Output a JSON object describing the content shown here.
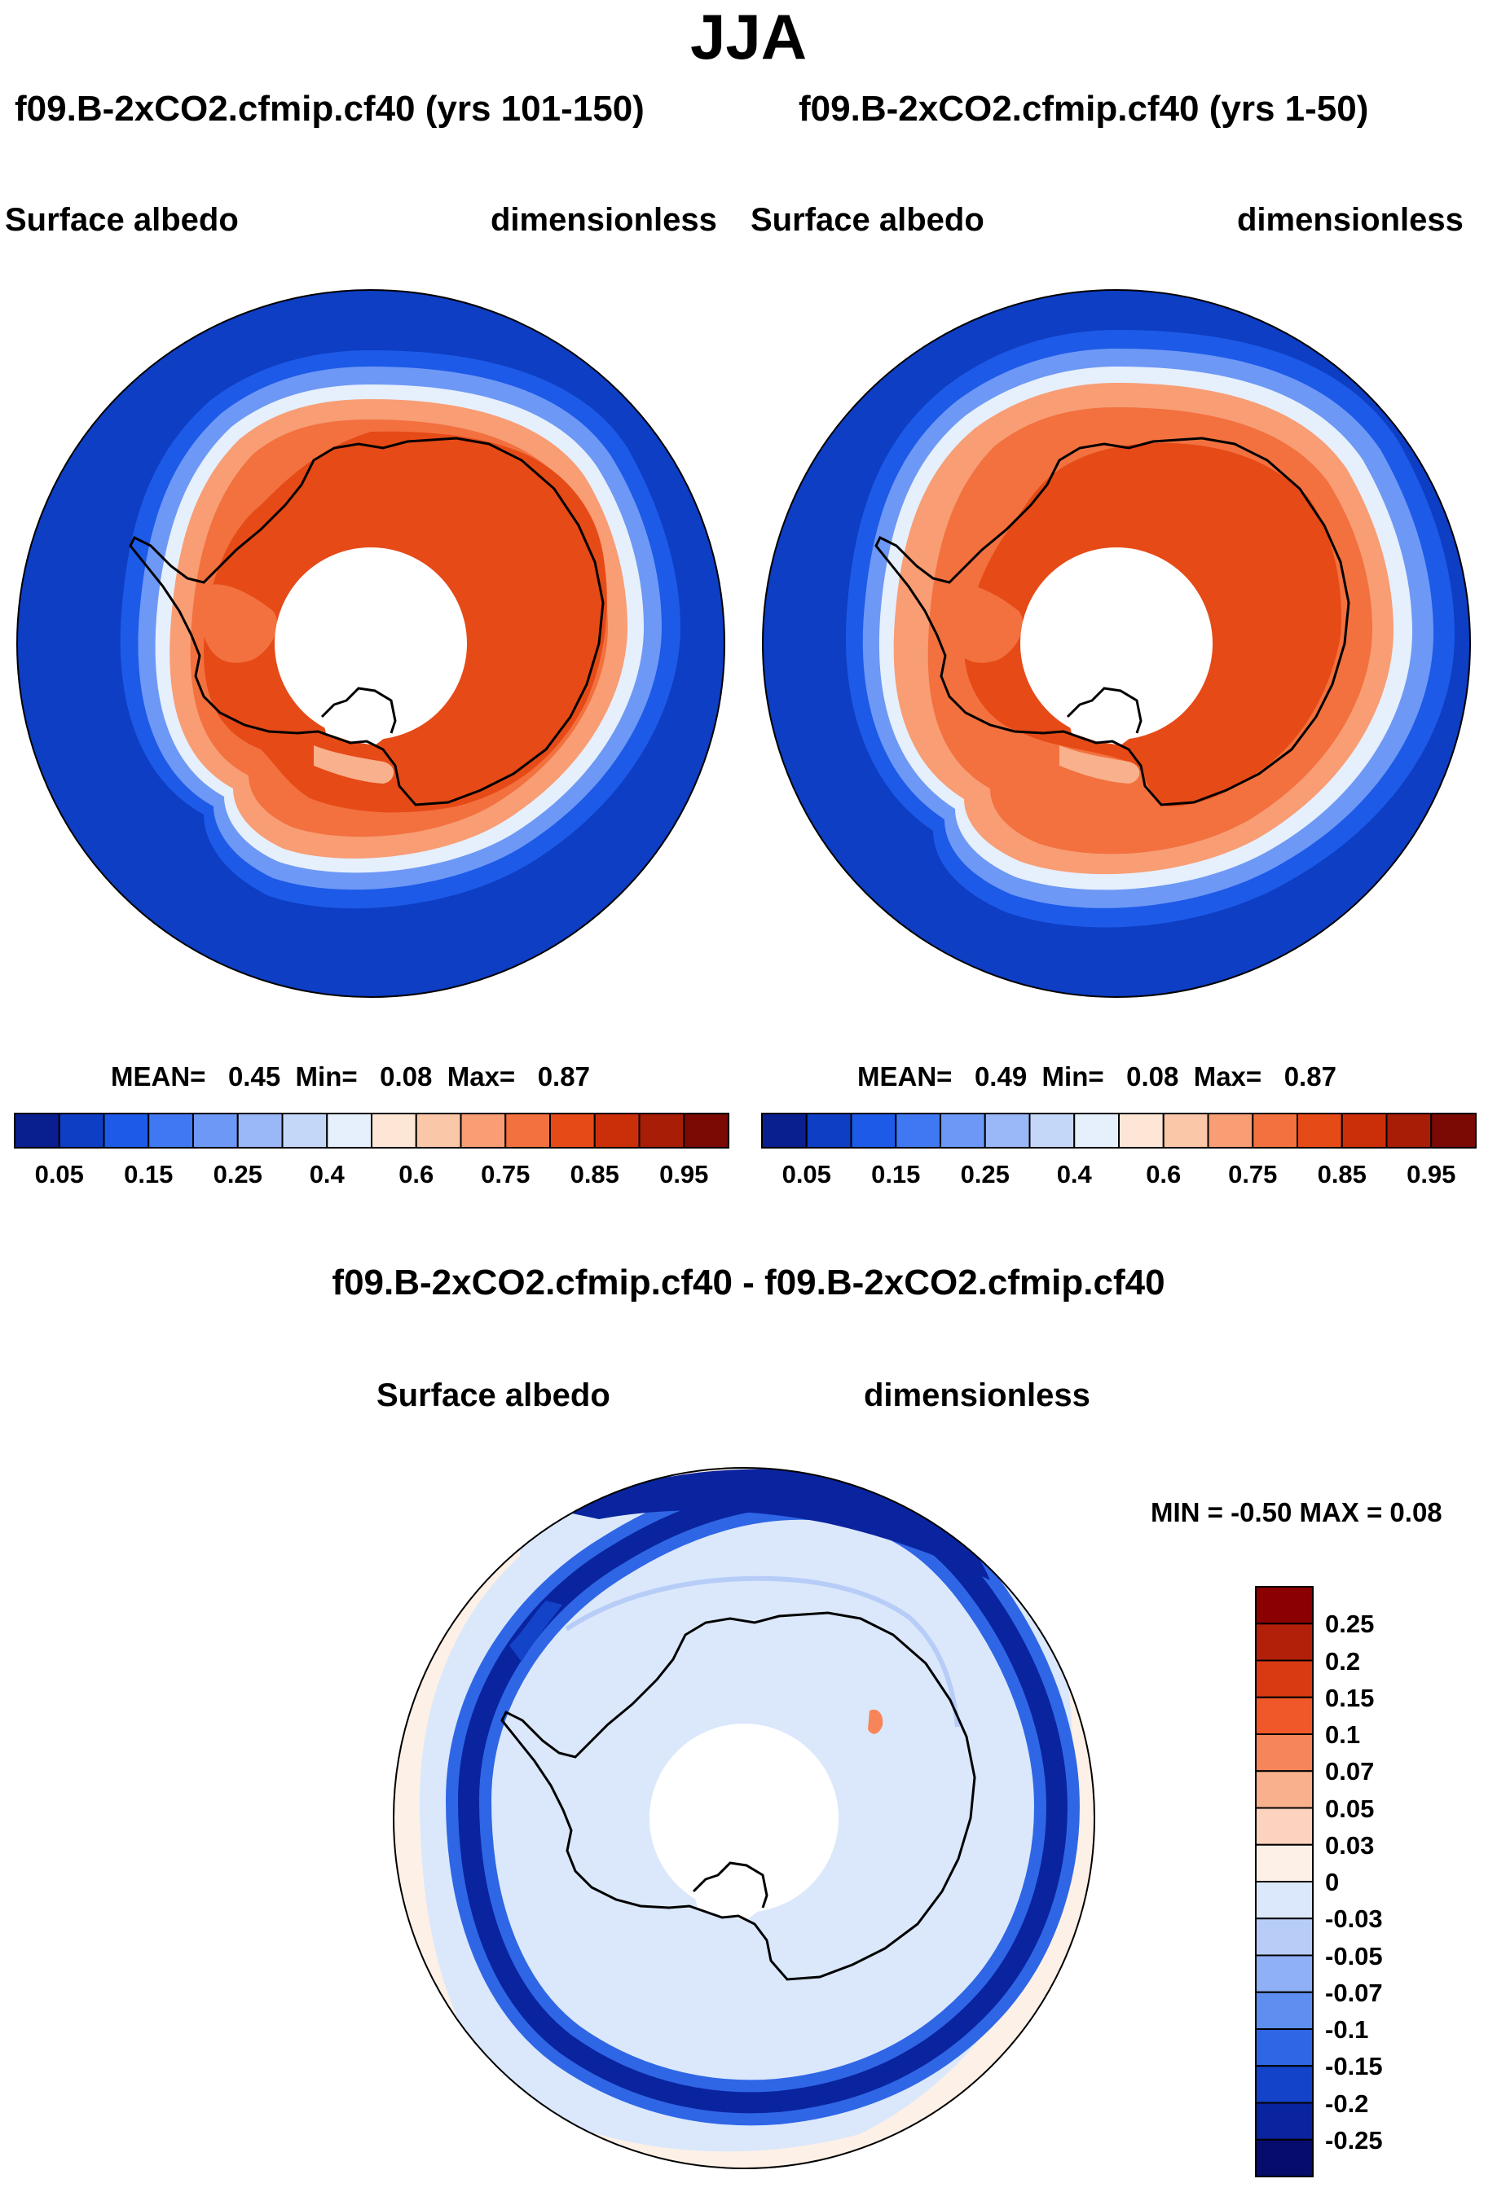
{
  "main_title": "JJA",
  "panels": [
    {
      "title": "f09.B-2xCO2.cfmip.cf40 (yrs 101-150)",
      "var": "Surface albedo",
      "units": "dimensionless",
      "stats": {
        "mean_label": "MEAN=",
        "mean": "0.45",
        "min_label": "Min=",
        "min": "0.08",
        "max_label": "Max=",
        "max": "0.87"
      }
    },
    {
      "title": "f09.B-2xCO2.cfmip.cf40 (yrs 1-50)",
      "var": "Surface albedo",
      "units": "dimensionless",
      "stats": {
        "mean_label": "MEAN=",
        "mean": "0.49",
        "min_label": "Min=",
        "min": "0.08",
        "max_label": "Max=",
        "max": "0.87"
      }
    }
  ],
  "diff": {
    "title": "f09.B-2xCO2.cfmip.cf40 - f09.B-2xCO2.cfmip.cf40",
    "var": "Surface albedo",
    "units": "dimensionless",
    "minmax": "MIN =  -0.50 MAX =   0.08"
  },
  "chart_data": [
    {
      "type": "heatmap",
      "title": "f09.B-2xCO2.cfmip.cf40 (yrs 101-150)",
      "projection": "south polar stereographic",
      "variable": "Surface albedo",
      "units": "dimensionless",
      "mean": 0.45,
      "min": 0.08,
      "max": 0.87,
      "colorbar": {
        "orientation": "horizontal",
        "levels": [
          0.05,
          0.1,
          0.15,
          0.2,
          0.25,
          0.3,
          0.4,
          0.5,
          0.6,
          0.7,
          0.75,
          0.8,
          0.85,
          0.9,
          0.95
        ],
        "tick_labels": [
          "0.05",
          "0.15",
          "0.25",
          "0.4",
          "0.6",
          "0.75",
          "0.85",
          "0.95"
        ],
        "colors": [
          "#0a1f8f",
          "#0d3ec4",
          "#1d5ae8",
          "#3f78f2",
          "#6d98f5",
          "#9ab7f7",
          "#c4d7f9",
          "#e6effc",
          "#fde6d6",
          "#fbc7a9",
          "#f89d74",
          "#f2713f",
          "#e64a17",
          "#cb2f0a",
          "#a81d06",
          "#7a0a03"
        ]
      }
    },
    {
      "type": "heatmap",
      "title": "f09.B-2xCO2.cfmip.cf40 (yrs 1-50)",
      "projection": "south polar stereographic",
      "variable": "Surface albedo",
      "units": "dimensionless",
      "mean": 0.49,
      "min": 0.08,
      "max": 0.87,
      "colorbar": {
        "orientation": "horizontal",
        "levels": [
          0.05,
          0.1,
          0.15,
          0.2,
          0.25,
          0.3,
          0.4,
          0.5,
          0.6,
          0.7,
          0.75,
          0.8,
          0.85,
          0.9,
          0.95
        ],
        "tick_labels": [
          "0.05",
          "0.15",
          "0.25",
          "0.4",
          "0.6",
          "0.75",
          "0.85",
          "0.95"
        ],
        "colors": [
          "#0a1f8f",
          "#0d3ec4",
          "#1d5ae8",
          "#3f78f2",
          "#6d98f5",
          "#9ab7f7",
          "#c4d7f9",
          "#e6effc",
          "#fde6d6",
          "#fbc7a9",
          "#f89d74",
          "#f2713f",
          "#e64a17",
          "#cb2f0a",
          "#a81d06",
          "#7a0a03"
        ]
      }
    },
    {
      "type": "heatmap",
      "title": "f09.B-2xCO2.cfmip.cf40 - f09.B-2xCO2.cfmip.cf40",
      "projection": "south polar stereographic",
      "variable": "Surface albedo",
      "units": "dimensionless",
      "min": -0.5,
      "max": 0.08,
      "colorbar": {
        "orientation": "vertical",
        "tick_labels": [
          "0.25",
          "0.2",
          "0.15",
          "0.1",
          "0.07",
          "0.05",
          "0.03",
          "0",
          "-0.03",
          "-0.05",
          "-0.07",
          "-0.1",
          "-0.15",
          "-0.2",
          "-0.25"
        ],
        "colors": [
          "#8b0000",
          "#b3200a",
          "#d93a12",
          "#f0582a",
          "#f6865a",
          "#f9b08c",
          "#fbd3bf",
          "#fdf0e6",
          "#dbe8fb",
          "#b7cdf8",
          "#8fb0f5",
          "#5e8ef0",
          "#2f66e6",
          "#1343c8",
          "#0a24a0",
          "#050c6b"
        ]
      }
    }
  ]
}
